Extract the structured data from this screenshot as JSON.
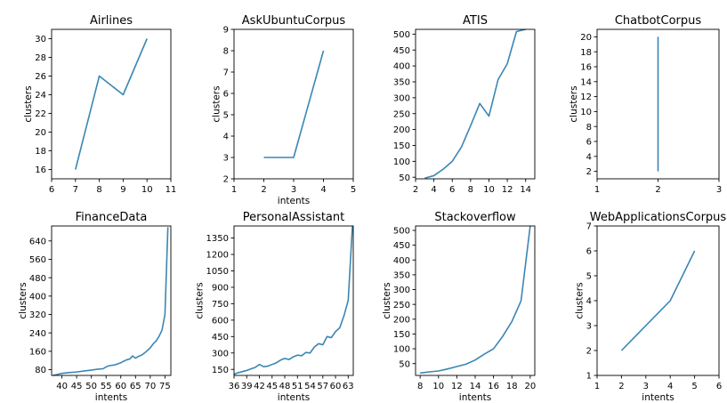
{
  "figure": {
    "background": "#ffffff",
    "line_color": "#3a86b4",
    "axis_color": "#000000"
  },
  "chart_data": [
    {
      "type": "line",
      "title": "Airlines",
      "xlabel": "",
      "ylabel": "clusters",
      "x": [
        7,
        8,
        9,
        10
      ],
      "y": [
        16,
        26,
        24,
        30
      ],
      "xlim": [
        6,
        11
      ],
      "ylim": [
        15,
        31
      ],
      "xticks": [
        6,
        7,
        8,
        9,
        10,
        11
      ],
      "yticks": [
        16,
        18,
        20,
        22,
        24,
        26,
        28,
        30
      ],
      "grid": false
    },
    {
      "type": "line",
      "title": "AskUbuntuCorpus",
      "xlabel": "intents",
      "ylabel": "clusters",
      "x": [
        2,
        3,
        4
      ],
      "y": [
        3,
        3,
        8
      ],
      "xlim": [
        1,
        5
      ],
      "ylim": [
        2,
        9
      ],
      "xticks": [
        1,
        2,
        3,
        4,
        5
      ],
      "yticks": [
        2,
        3,
        4,
        5,
        6,
        7,
        8,
        9
      ],
      "grid": false
    },
    {
      "type": "line",
      "title": "ATIS",
      "xlabel": "",
      "ylabel": "",
      "x": [
        3,
        4,
        5,
        6,
        7,
        8,
        9,
        10,
        11,
        12,
        13,
        14
      ],
      "y": [
        47,
        55,
        75,
        100,
        145,
        212,
        282,
        242,
        357,
        407,
        508,
        515
      ],
      "xlim": [
        2,
        15
      ],
      "ylim": [
        45,
        515
      ],
      "xticks": [
        2,
        4,
        6,
        8,
        10,
        12,
        14
      ],
      "yticks": [
        50,
        100,
        150,
        200,
        250,
        300,
        350,
        400,
        450,
        500
      ],
      "grid": false
    },
    {
      "type": "line",
      "title": "ChatbotCorpus",
      "xlabel": "",
      "ylabel": "clusters",
      "x": [
        2,
        2
      ],
      "y": [
        2,
        20
      ],
      "xlim": [
        1,
        3
      ],
      "ylim": [
        1,
        21
      ],
      "xticks": [
        1,
        2,
        3
      ],
      "yticks": [
        2,
        4,
        6,
        8,
        10,
        12,
        14,
        16,
        18,
        20
      ],
      "grid": false
    },
    {
      "type": "line",
      "title": "FinanceData",
      "xlabel": "intents",
      "ylabel": "clusters",
      "x": [
        37,
        38,
        40,
        42,
        45,
        48,
        50,
        52,
        54,
        55,
        56,
        58,
        60,
        61,
        62,
        63,
        64,
        65,
        66,
        67,
        68,
        69,
        70,
        71,
        72,
        73,
        74,
        75,
        76
      ],
      "y": [
        55,
        58,
        64,
        67,
        70,
        75,
        78,
        82,
        84,
        92,
        97,
        101,
        110,
        117,
        123,
        126,
        140,
        130,
        138,
        143,
        152,
        163,
        175,
        192,
        205,
        225,
        252,
        320,
        700
      ],
      "xlim": [
        36.5,
        77
      ],
      "ylim": [
        55,
        705
      ],
      "xticks": [
        40,
        45,
        50,
        55,
        60,
        65,
        70,
        75
      ],
      "yticks": [
        80,
        160,
        240,
        320,
        400,
        480,
        560,
        640
      ],
      "grid": false
    },
    {
      "type": "line",
      "title": "PersonalAssistant",
      "xlabel": "intents",
      "ylabel": "clusters",
      "x": [
        36,
        37,
        38,
        39,
        40,
        41,
        42,
        43,
        44,
        45,
        46,
        47,
        48,
        49,
        50,
        51,
        52,
        53,
        54,
        55,
        56,
        57,
        58,
        59,
        60,
        61,
        62,
        63,
        64
      ],
      "y": [
        105,
        120,
        130,
        140,
        155,
        168,
        195,
        175,
        180,
        195,
        210,
        235,
        250,
        240,
        265,
        280,
        275,
        305,
        300,
        355,
        385,
        375,
        450,
        440,
        495,
        530,
        640,
        780,
        1460
      ],
      "xlim": [
        36,
        64.2
      ],
      "ylim": [
        95,
        1460
      ],
      "xticks": [
        36,
        39,
        42,
        45,
        48,
        51,
        54,
        57,
        60,
        63
      ],
      "yticks": [
        150,
        300,
        450,
        600,
        750,
        900,
        1050,
        1200,
        1350
      ],
      "grid": false
    },
    {
      "type": "line",
      "title": "Stackoverflow",
      "xlabel": "intents",
      "ylabel": "clusters",
      "x": [
        8,
        9,
        10,
        11,
        12,
        13,
        14,
        15,
        16,
        17,
        18,
        19,
        20
      ],
      "y": [
        18,
        22,
        25,
        32,
        40,
        48,
        62,
        82,
        100,
        142,
        192,
        262,
        515
      ],
      "xlim": [
        7.5,
        20.5
      ],
      "ylim": [
        10,
        515
      ],
      "xticks": [
        8,
        10,
        12,
        14,
        16,
        18,
        20
      ],
      "yticks": [
        50,
        100,
        150,
        200,
        250,
        300,
        350,
        400,
        450,
        500
      ],
      "grid": false
    },
    {
      "type": "line",
      "title": "WebApplicationsCorpus",
      "xlabel": "intents",
      "ylabel": "clusters",
      "x": [
        2,
        4,
        5
      ],
      "y": [
        2,
        4,
        6
      ],
      "xlim": [
        1,
        6
      ],
      "ylim": [
        1,
        7
      ],
      "xticks": [
        1,
        2,
        3,
        4,
        5,
        6
      ],
      "yticks": [
        1,
        2,
        3,
        4,
        5,
        6,
        7
      ],
      "grid": false
    }
  ]
}
